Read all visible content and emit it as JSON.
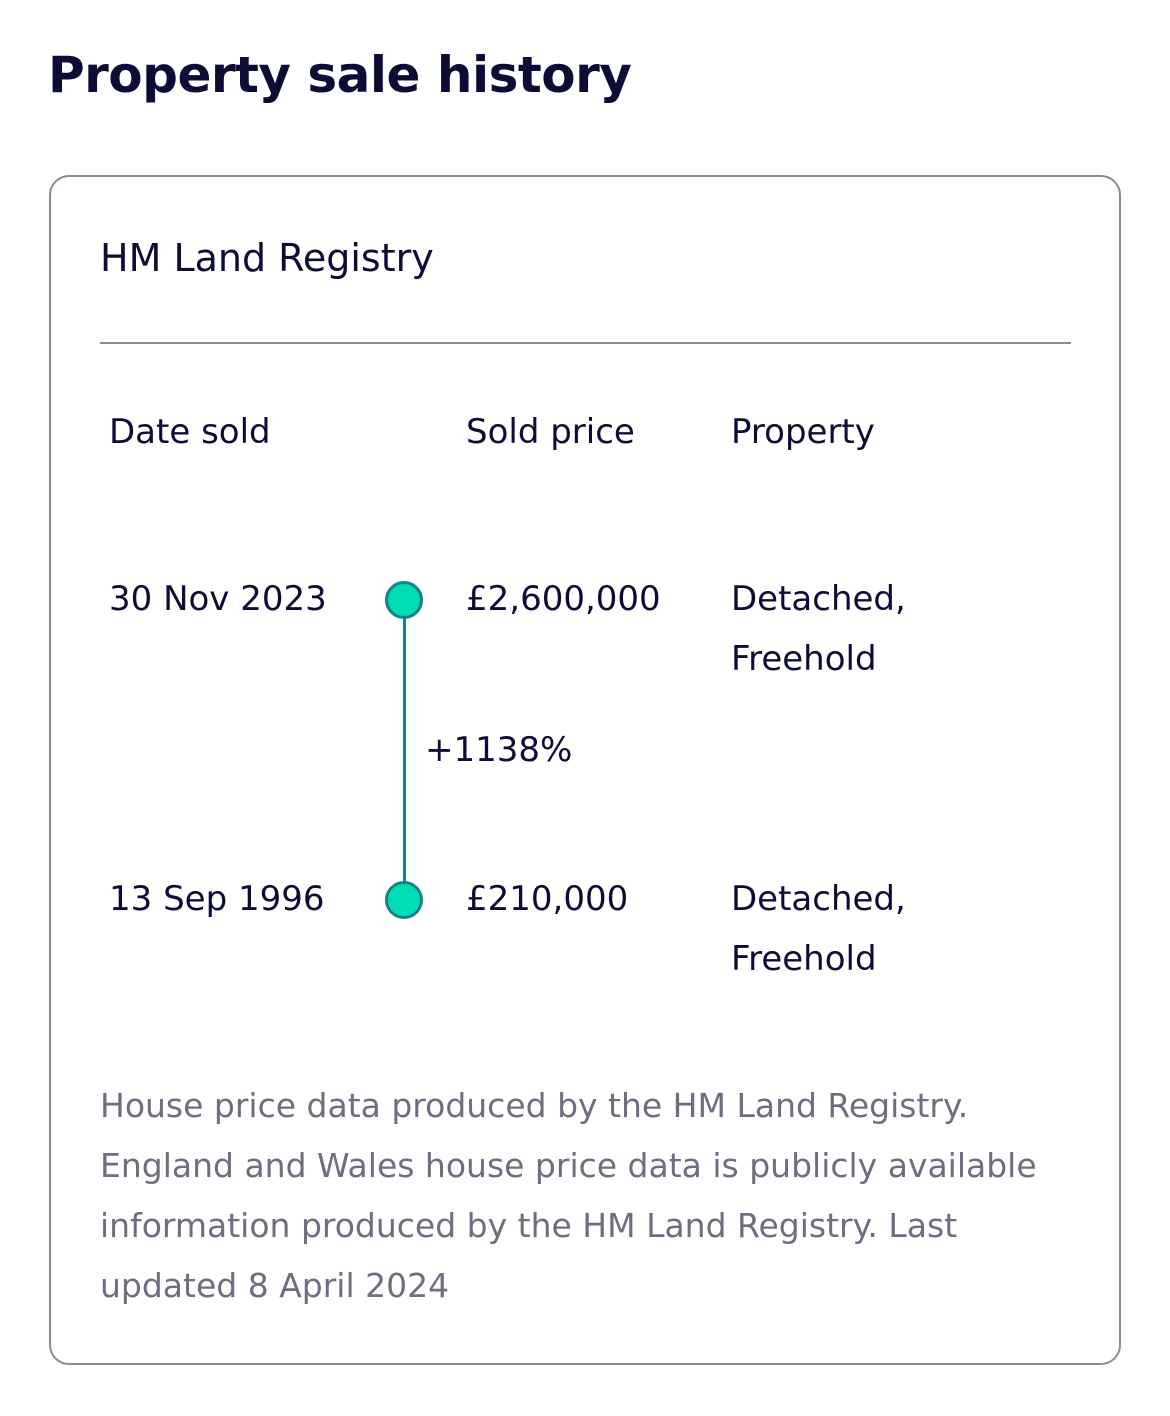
{
  "title": "Property sale history",
  "source": "HM Land Registry",
  "columns": [
    "Date sold",
    "Sold price",
    "Property"
  ],
  "sales": [
    {
      "date": "30 Nov 2023",
      "price": "£2,600,000",
      "type_line1": "Detached,",
      "type_line2": "Freehold"
    },
    {
      "date": "13 Sep 1996",
      "price": "£210,000",
      "type_line1": "Detached,",
      "type_line2": "Freehold"
    }
  ],
  "change": "+1138%",
  "footnote": "House price data produced by the HM Land Registry. England and Wales house price data is publicly available information produced by the HM Land Registry. Last updated 8 April 2024",
  "colors": {
    "dot": "#00ddb3",
    "line": "#16838a",
    "text": "#0c0c36",
    "muted": "#706d80"
  }
}
